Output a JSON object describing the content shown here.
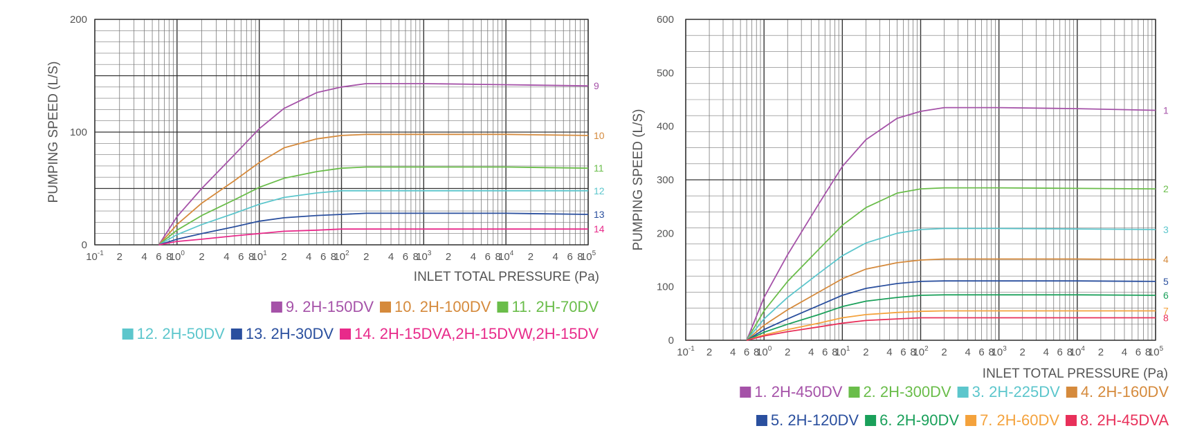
{
  "chart_data": [
    {
      "type": "line",
      "xlabel": "INLET TOTAL PRESSURE (Pa)",
      "ylabel": "PUMPING SPEED (L/S)",
      "x_scale": "log",
      "xlim": [
        0.1,
        100000
      ],
      "ylim": [
        0,
        200
      ],
      "y_ticks": [
        0,
        100,
        200
      ],
      "x_tick_labels": [
        "10-1",
        "2",
        "4",
        "6",
        "8",
        "100",
        "2",
        "4",
        "6",
        "8",
        "101",
        "2",
        "4",
        "6",
        "8",
        "102",
        "2",
        "4",
        "6",
        "8",
        "103",
        "2",
        "4",
        "6",
        "8",
        "104",
        "2",
        "4",
        "6",
        "8",
        "105"
      ],
      "grid": true,
      "legend_position": "bottom",
      "series": [
        {
          "name": "9. 2H-150DV",
          "end_label": "9",
          "color": "#a552a8",
          "x": [
            0.6,
            1,
            2,
            5,
            10,
            20,
            50,
            100,
            200,
            1000,
            10000,
            100000
          ],
          "y": [
            0,
            25,
            50,
            80,
            103,
            121,
            135,
            140,
            143,
            143,
            142,
            141
          ]
        },
        {
          "name": "10. 2H-100DV",
          "end_label": "10",
          "color": "#d58a3c",
          "x": [
            0.6,
            1,
            2,
            5,
            10,
            20,
            50,
            100,
            200,
            1000,
            10000,
            100000
          ],
          "y": [
            0,
            18,
            37,
            57,
            73,
            86,
            94,
            97,
            98,
            98,
            98,
            97
          ]
        },
        {
          "name": "11. 2H-70DV",
          "end_label": "11",
          "color": "#6abd4a",
          "x": [
            0.6,
            1,
            2,
            5,
            10,
            20,
            50,
            100,
            200,
            1000,
            10000,
            100000
          ],
          "y": [
            0,
            13,
            26,
            40,
            51,
            59,
            65,
            68,
            69,
            69,
            69,
            68
          ]
        },
        {
          "name": "12. 2H-50DV",
          "end_label": "12",
          "color": "#5cc6cc",
          "x": [
            0.6,
            1,
            2,
            5,
            10,
            20,
            50,
            100,
            200,
            1000,
            10000,
            100000
          ],
          "y": [
            0,
            9,
            18,
            28,
            36,
            42,
            46,
            48,
            48,
            48,
            48,
            48
          ]
        },
        {
          "name": "13. 2H-30DV",
          "end_label": "13",
          "color": "#2a4f9e",
          "x": [
            0.6,
            1,
            2,
            5,
            10,
            20,
            50,
            100,
            200,
            1000,
            10000,
            100000
          ],
          "y": [
            0,
            5,
            10,
            16,
            21,
            24,
            26,
            27,
            28,
            28,
            28,
            27
          ]
        },
        {
          "name": "14. 2H-15DVA,2H-15DVW,2H-15DV",
          "end_label": "14",
          "color": "#e82a8a",
          "x": [
            0.6,
            1,
            2,
            5,
            10,
            20,
            50,
            100,
            200,
            1000,
            10000,
            100000
          ],
          "y": [
            0,
            3,
            5,
            8,
            10,
            12,
            13,
            14,
            14,
            14,
            14,
            14
          ]
        }
      ]
    },
    {
      "type": "line",
      "xlabel": "INLET TOTAL PRESSURE (Pa)",
      "ylabel": "PUMPING SPEED (L/S)",
      "x_scale": "log",
      "xlim": [
        0.1,
        100000
      ],
      "ylim": [
        0,
        600
      ],
      "y_ticks": [
        0,
        100,
        200,
        300,
        400,
        500,
        600
      ],
      "x_tick_labels": [
        "10-1",
        "2",
        "4",
        "6",
        "8",
        "100",
        "2",
        "4",
        "6",
        "8",
        "101",
        "2",
        "4",
        "6",
        "8",
        "102",
        "2",
        "4",
        "6",
        "8",
        "103",
        "2",
        "4",
        "6",
        "8",
        "104",
        "2",
        "4",
        "6",
        "8",
        "105"
      ],
      "grid": true,
      "legend_position": "bottom",
      "series": [
        {
          "name": "1. 2H-450DV",
          "end_label": "1",
          "color": "#a552a8",
          "x": [
            0.6,
            1,
            2,
            5,
            10,
            20,
            50,
            100,
            200,
            1000,
            10000,
            100000
          ],
          "y": [
            0,
            80,
            160,
            255,
            325,
            375,
            415,
            428,
            435,
            435,
            433,
            430
          ]
        },
        {
          "name": "2. 2H-300DV",
          "end_label": "2",
          "color": "#6abd4a",
          "x": [
            0.6,
            1,
            2,
            5,
            10,
            20,
            50,
            100,
            200,
            1000,
            10000,
            100000
          ],
          "y": [
            0,
            55,
            110,
            170,
            215,
            248,
            275,
            283,
            285,
            285,
            284,
            283
          ]
        },
        {
          "name": "3. 2H-225DV",
          "end_label": "3",
          "color": "#5cc6cc",
          "x": [
            0.6,
            1,
            2,
            5,
            10,
            20,
            50,
            100,
            200,
            1000,
            10000,
            100000
          ],
          "y": [
            0,
            40,
            80,
            125,
            158,
            182,
            200,
            207,
            209,
            209,
            208,
            207
          ]
        },
        {
          "name": "4. 2H-160DV",
          "end_label": "4",
          "color": "#d58a3c",
          "x": [
            0.6,
            1,
            2,
            5,
            10,
            20,
            50,
            100,
            200,
            1000,
            10000,
            100000
          ],
          "y": [
            0,
            28,
            57,
            90,
            115,
            133,
            145,
            150,
            152,
            152,
            152,
            151
          ]
        },
        {
          "name": "5. 2H-120DV",
          "end_label": "5",
          "color": "#2a4f9e",
          "x": [
            0.6,
            1,
            2,
            5,
            10,
            20,
            50,
            100,
            200,
            1000,
            10000,
            100000
          ],
          "y": [
            0,
            20,
            40,
            65,
            84,
            97,
            106,
            110,
            111,
            111,
            111,
            110
          ]
        },
        {
          "name": "6. 2H-90DV",
          "end_label": "6",
          "color": "#1aa05a",
          "x": [
            0.6,
            1,
            2,
            5,
            10,
            20,
            50,
            100,
            200,
            1000,
            10000,
            100000
          ],
          "y": [
            0,
            15,
            30,
            48,
            63,
            73,
            80,
            84,
            85,
            85,
            85,
            84
          ]
        },
        {
          "name": "7. 2H-60DV",
          "end_label": "7",
          "color": "#f4a23c",
          "x": [
            0.6,
            1,
            2,
            5,
            10,
            20,
            50,
            100,
            200,
            1000,
            10000,
            100000
          ],
          "y": [
            0,
            10,
            20,
            32,
            42,
            48,
            52,
            54,
            55,
            55,
            55,
            55
          ]
        },
        {
          "name": "8. 2H-45DVA",
          "end_label": "8",
          "color": "#e8305a",
          "x": [
            0.6,
            1,
            2,
            5,
            10,
            20,
            50,
            100,
            200,
            1000,
            10000,
            100000
          ],
          "y": [
            0,
            8,
            16,
            25,
            32,
            37,
            40,
            42,
            42,
            42,
            42,
            42
          ]
        }
      ]
    }
  ]
}
